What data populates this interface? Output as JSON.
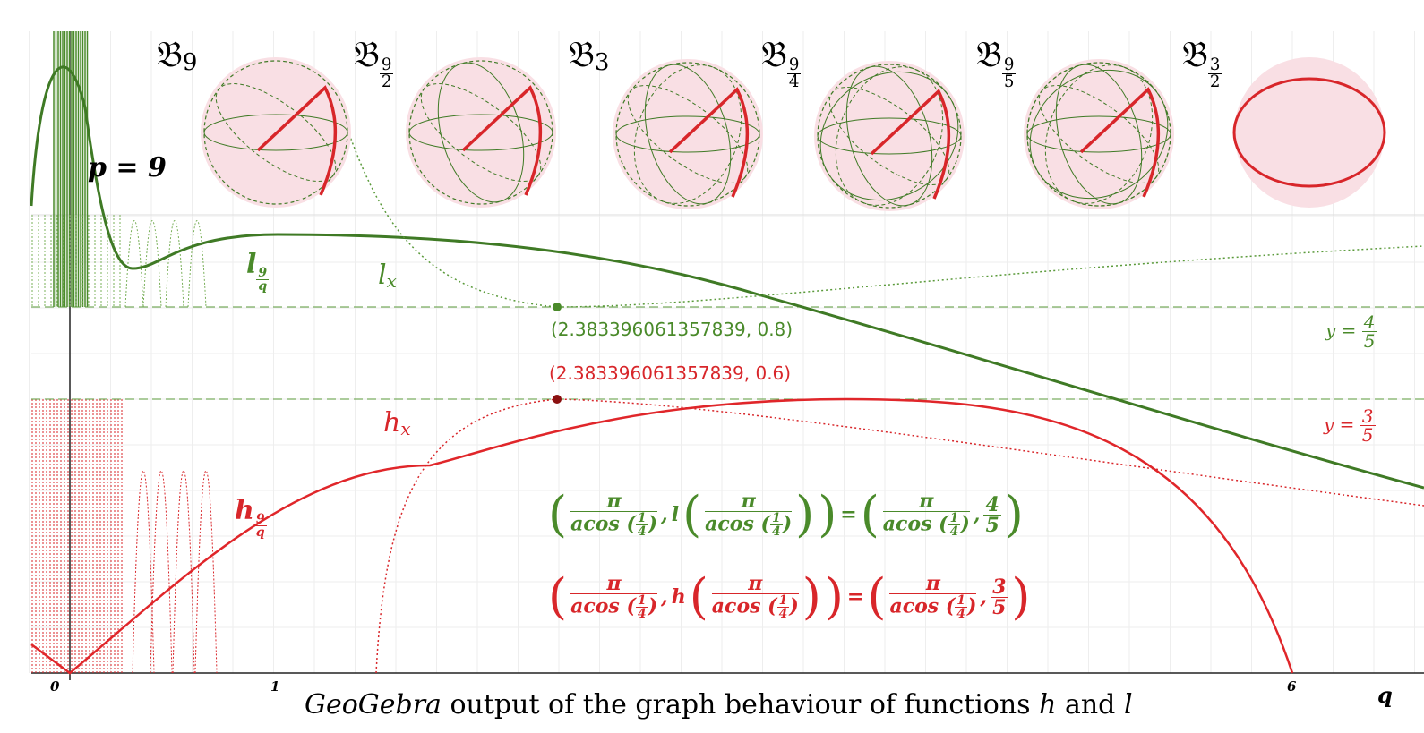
{
  "parameter_label": "p = 9",
  "spheres": [
    {
      "symbol": "𝔅",
      "sub": "9"
    },
    {
      "symbol": "𝔅",
      "num": "9",
      "den": "2"
    },
    {
      "symbol": "𝔅",
      "sub": "3"
    },
    {
      "symbol": "𝔅",
      "num": "9",
      "den": "4"
    },
    {
      "symbol": "𝔅",
      "num": "9",
      "den": "5"
    },
    {
      "symbol": "𝔅",
      "num": "3",
      "den": "2"
    }
  ],
  "curve_labels": [
    {
      "name": "l",
      "num": "9",
      "den": "q"
    },
    {
      "name": "l",
      "sub": "x"
    },
    {
      "name": "h",
      "sub": "x"
    },
    {
      "name": "h",
      "num": "9",
      "den": "q"
    }
  ],
  "points": [
    {
      "label": "(2.383396061357839, 0.8)"
    },
    {
      "label": "(2.383396061357839, 0.6)"
    }
  ],
  "asymptotes": [
    {
      "lhs": "y =",
      "num": "4",
      "den": "5"
    },
    {
      "lhs": "y =",
      "num": "3",
      "den": "5"
    }
  ],
  "equations": [
    {
      "pi": "π",
      "func": "acos",
      "arg_num": "1",
      "arg_den": "4",
      "name": "l",
      "eq": "=",
      "value_num": "4",
      "value_den": "5"
    },
    {
      "pi": "π",
      "func": "acos",
      "arg_num": "1",
      "arg_den": "4",
      "name": "h",
      "eq": "=",
      "value_num": "3",
      "value_den": "5"
    }
  ],
  "axis": {
    "x_labels": [
      "0",
      "1",
      "6"
    ],
    "x_name": "q"
  },
  "caption": {
    "italic": "GeoGebra",
    "text": "output of the graph behaviour of functions",
    "f1": "h",
    "and": "and",
    "f2": "l"
  }
}
